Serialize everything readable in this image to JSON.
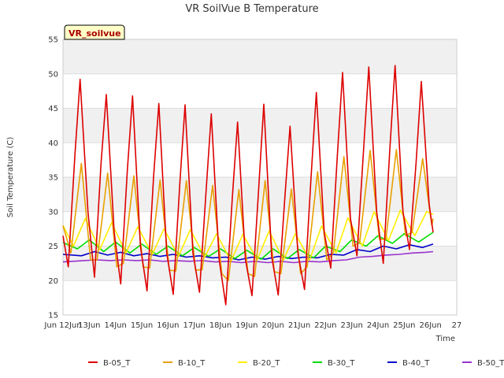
{
  "chart_data": {
    "type": "line",
    "title": "VR SoilVue B Temperature",
    "xlabel": "Time",
    "ylabel": "Soil Temperature (C)",
    "annotation": "VR_soilvue",
    "ylim": [
      15,
      55
    ],
    "yticks": [
      15,
      20,
      25,
      30,
      35,
      40,
      45,
      50,
      55
    ],
    "xlim": [
      12,
      27
    ],
    "xticks": [
      12,
      13,
      14,
      15,
      16,
      17,
      18,
      19,
      20,
      21,
      22,
      23,
      24,
      25,
      26,
      27
    ],
    "xtick_labels": [
      "Jun 12Jun",
      "13Jun",
      "14Jun",
      "15Jun",
      "16Jun",
      "17Jun",
      "18Jun",
      "19Jun",
      "20Jun",
      "21Jun",
      "22Jun",
      "23Jun",
      "24Jun",
      "25Jun",
      "26Jun",
      "27"
    ],
    "grid": true,
    "legend_position": "bottom",
    "x_units": "day of June",
    "series": [
      {
        "name": "B-05_T",
        "color": "#dd0000",
        "x": [
          12.0,
          12.2,
          12.45,
          12.65,
          12.95,
          13.2,
          13.45,
          13.65,
          13.95,
          14.2,
          14.45,
          14.65,
          14.95,
          15.2,
          15.45,
          15.65,
          15.95,
          16.2,
          16.45,
          16.65,
          16.95,
          17.2,
          17.45,
          17.65,
          17.95,
          18.2,
          18.45,
          18.65,
          18.95,
          19.2,
          19.45,
          19.65,
          19.95,
          20.2,
          20.45,
          20.65,
          20.95,
          21.2,
          21.45,
          21.65,
          21.95,
          22.2,
          22.45,
          22.65,
          22.95,
          23.2,
          23.45,
          23.65,
          23.95,
          24.2,
          24.45,
          24.65,
          24.95,
          25.2,
          25.45,
          25.65,
          25.95,
          26.1
        ],
        "y": [
          26.5,
          22.0,
          38.0,
          49.2,
          30.0,
          20.5,
          37.0,
          47.0,
          27.0,
          19.5,
          36.0,
          46.8,
          25.0,
          18.5,
          35.0,
          45.7,
          24.0,
          18.0,
          34.0,
          45.5,
          24.0,
          18.3,
          33.0,
          44.2,
          23.0,
          16.5,
          32.0,
          43.0,
          23.0,
          17.8,
          33.0,
          45.6,
          23.5,
          17.9,
          32.0,
          42.4,
          24.0,
          18.7,
          35.0,
          47.3,
          27.0,
          21.8,
          38.0,
          50.2,
          29.0,
          23.6,
          39.0,
          51.0,
          30.0,
          22.5,
          39.0,
          51.2,
          30.0,
          24.5,
          37.0,
          48.9,
          31.0,
          27.0
        ]
      },
      {
        "name": "B-10_T",
        "color": "#e8a000",
        "x": [
          12.0,
          12.3,
          12.7,
          13.05,
          13.3,
          13.7,
          14.05,
          14.3,
          14.7,
          15.05,
          15.3,
          15.7,
          16.05,
          16.3,
          16.7,
          17.05,
          17.3,
          17.7,
          18.05,
          18.3,
          18.7,
          19.05,
          19.3,
          19.7,
          20.05,
          20.3,
          20.7,
          21.05,
          21.3,
          21.7,
          22.05,
          22.3,
          22.7,
          23.05,
          23.3,
          23.7,
          24.05,
          24.3,
          24.7,
          25.05,
          25.3,
          25.7,
          26.05,
          26.1
        ],
        "y": [
          28.0,
          24.0,
          37.0,
          23.0,
          23.0,
          35.6,
          22.0,
          22.5,
          35.2,
          22.0,
          21.8,
          34.6,
          21.5,
          21.4,
          34.5,
          21.5,
          21.6,
          33.8,
          21.0,
          20.0,
          33.2,
          21.0,
          20.6,
          34.5,
          21.3,
          21.0,
          33.3,
          21.0,
          22.0,
          35.8,
          23.0,
          24.0,
          38.0,
          25.0,
          25.5,
          38.9,
          26.0,
          26.0,
          39.0,
          26.5,
          27.0,
          37.7,
          28.0,
          29.0
        ]
      },
      {
        "name": "B-20_T",
        "color": "#ffee00",
        "x": [
          12.0,
          12.4,
          12.85,
          13.4,
          13.85,
          14.4,
          14.85,
          15.4,
          15.85,
          16.4,
          16.85,
          17.4,
          17.85,
          18.4,
          18.85,
          19.4,
          19.85,
          20.4,
          20.85,
          21.4,
          21.85,
          22.4,
          22.85,
          23.4,
          23.85,
          24.4,
          24.85,
          25.4,
          25.85,
          26.1
        ],
        "y": [
          28.0,
          25.0,
          29.0,
          24.5,
          28.4,
          24.0,
          27.8,
          23.8,
          27.5,
          23.5,
          27.4,
          23.4,
          26.8,
          22.8,
          26.7,
          23.0,
          27.2,
          23.0,
          26.8,
          23.0,
          27.9,
          24.0,
          29.1,
          25.0,
          30.0,
          25.8,
          30.2,
          26.5,
          30.0,
          29.6
        ]
      },
      {
        "name": "B-30_T",
        "color": "#00dd00",
        "x": [
          12.0,
          12.55,
          13.0,
          13.55,
          14.0,
          14.55,
          15.0,
          15.55,
          16.0,
          16.55,
          17.0,
          17.55,
          18.0,
          18.55,
          19.0,
          19.55,
          20.0,
          20.55,
          21.0,
          21.55,
          22.0,
          22.55,
          23.0,
          23.55,
          24.0,
          24.55,
          25.0,
          25.55,
          26.1
        ],
        "y": [
          25.5,
          24.6,
          25.9,
          24.2,
          25.6,
          24.0,
          25.3,
          23.8,
          25.0,
          23.6,
          24.8,
          23.5,
          24.6,
          23.2,
          24.4,
          23.1,
          24.6,
          23.2,
          24.5,
          23.3,
          25.0,
          24.2,
          25.9,
          25.0,
          26.5,
          25.4,
          26.8,
          25.6,
          27.0
        ]
      },
      {
        "name": "B-40_T",
        "color": "#0000cc",
        "x": [
          12.0,
          12.7,
          13.2,
          13.7,
          14.2,
          14.7,
          15.2,
          15.7,
          16.2,
          16.7,
          17.2,
          17.7,
          18.2,
          18.7,
          19.2,
          19.7,
          20.2,
          20.7,
          21.2,
          21.7,
          22.2,
          22.7,
          23.2,
          23.7,
          24.2,
          24.7,
          25.2,
          25.7,
          26.1
        ],
        "y": [
          23.8,
          23.6,
          24.2,
          23.7,
          24.1,
          23.6,
          23.9,
          23.5,
          23.8,
          23.4,
          23.6,
          23.3,
          23.4,
          23.0,
          23.4,
          23.1,
          23.5,
          23.2,
          23.4,
          23.3,
          23.8,
          23.7,
          24.5,
          24.2,
          25.0,
          24.6,
          25.2,
          24.8,
          25.3
        ]
      },
      {
        "name": "B-50_T",
        "color": "#9933cc",
        "x": [
          12.0,
          12.8,
          13.3,
          13.8,
          14.3,
          14.8,
          15.3,
          15.8,
          16.3,
          16.8,
          17.3,
          17.8,
          18.3,
          18.8,
          19.3,
          19.8,
          20.3,
          20.8,
          21.3,
          21.8,
          22.3,
          22.8,
          23.3,
          23.8,
          24.3,
          24.8,
          25.3,
          25.8,
          26.1
        ],
        "y": [
          22.7,
          22.9,
          23.0,
          22.9,
          23.0,
          22.9,
          23.0,
          22.8,
          22.9,
          22.8,
          22.9,
          22.7,
          22.8,
          22.6,
          22.8,
          22.6,
          22.8,
          22.6,
          22.8,
          22.7,
          22.9,
          23.0,
          23.4,
          23.5,
          23.7,
          23.8,
          24.0,
          24.1,
          24.2
        ]
      }
    ]
  }
}
